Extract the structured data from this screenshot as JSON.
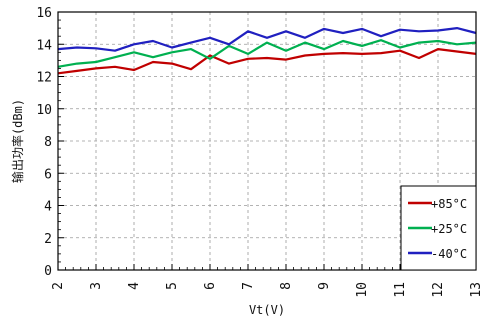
{
  "chart_data": {
    "type": "line",
    "title": "",
    "xlabel": "Vt(V)",
    "ylabel": "输出功率(dBm)",
    "xlim": [
      2,
      13
    ],
    "ylim": [
      0,
      16
    ],
    "x_ticks": [
      "2",
      "3",
      "4",
      "5",
      "6",
      "7",
      "8",
      "9",
      "10",
      "11",
      "12",
      "13"
    ],
    "y_ticks": [
      "0",
      "2",
      "4",
      "6",
      "8",
      "10",
      "12",
      "14",
      "16"
    ],
    "grid": true,
    "legend_position": "bottom-right",
    "series": [
      {
        "name": "+85°C",
        "color": "#c00000",
        "points": [
          [
            2,
            12.2
          ],
          [
            2.5,
            12.35
          ],
          [
            3,
            12.5
          ],
          [
            3.5,
            12.6
          ],
          [
            4,
            12.4
          ],
          [
            4.5,
            12.9
          ],
          [
            5,
            12.8
          ],
          [
            5.5,
            12.45
          ],
          [
            6,
            13.3
          ],
          [
            6.5,
            12.8
          ],
          [
            7,
            13.1
          ],
          [
            7.5,
            13.15
          ],
          [
            8,
            13.05
          ],
          [
            8.5,
            13.3
          ],
          [
            9,
            13.4
          ],
          [
            9.5,
            13.45
          ],
          [
            10,
            13.4
          ],
          [
            10.5,
            13.45
          ],
          [
            11,
            13.6
          ],
          [
            11.5,
            13.15
          ],
          [
            12,
            13.7
          ],
          [
            12.5,
            13.55
          ],
          [
            13,
            13.4
          ]
        ]
      },
      {
        "name": "+25°C",
        "color": "#00b050",
        "points": [
          [
            2,
            12.6
          ],
          [
            2.5,
            12.8
          ],
          [
            3,
            12.9
          ],
          [
            3.5,
            13.2
          ],
          [
            4,
            13.5
          ],
          [
            4.5,
            13.2
          ],
          [
            5,
            13.5
          ],
          [
            5.5,
            13.7
          ],
          [
            6,
            13.1
          ],
          [
            6.5,
            13.9
          ],
          [
            7,
            13.4
          ],
          [
            7.5,
            14.1
          ],
          [
            8,
            13.6
          ],
          [
            8.5,
            14.1
          ],
          [
            9,
            13.7
          ],
          [
            9.5,
            14.2
          ],
          [
            10,
            13.9
          ],
          [
            10.5,
            14.25
          ],
          [
            11,
            13.8
          ],
          [
            11.5,
            14.1
          ],
          [
            12,
            14.2
          ],
          [
            12.5,
            14.0
          ],
          [
            13,
            14.1
          ]
        ]
      },
      {
        "name": "-40°C",
        "color": "#2020c0",
        "points": [
          [
            2,
            13.7
          ],
          [
            2.5,
            13.8
          ],
          [
            3,
            13.75
          ],
          [
            3.5,
            13.6
          ],
          [
            4,
            14.0
          ],
          [
            4.5,
            14.2
          ],
          [
            5,
            13.8
          ],
          [
            5.5,
            14.1
          ],
          [
            6,
            14.4
          ],
          [
            6.5,
            14.0
          ],
          [
            7,
            14.8
          ],
          [
            7.5,
            14.4
          ],
          [
            8,
            14.8
          ],
          [
            8.5,
            14.4
          ],
          [
            9,
            14.95
          ],
          [
            9.5,
            14.7
          ],
          [
            10,
            14.95
          ],
          [
            10.5,
            14.5
          ],
          [
            11,
            14.9
          ],
          [
            11.5,
            14.8
          ],
          [
            12,
            14.85
          ],
          [
            12.5,
            15.0
          ],
          [
            13,
            14.7
          ]
        ]
      }
    ]
  }
}
